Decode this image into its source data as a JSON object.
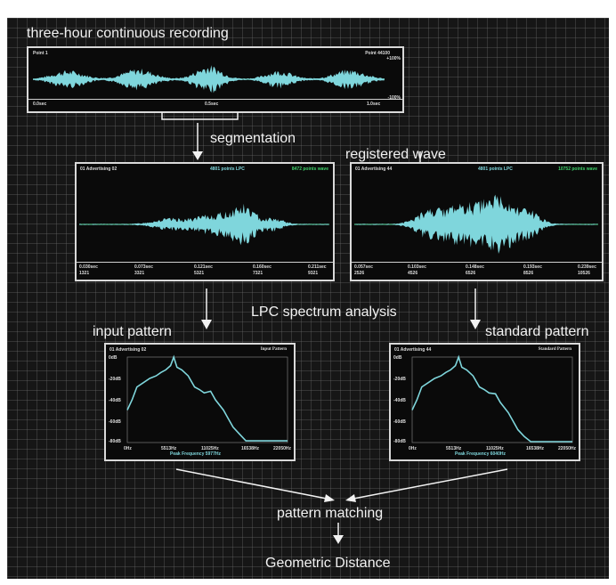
{
  "title": "three-hour continuous recording",
  "colors": {
    "background": "#161616",
    "wave": "#7fd6dc",
    "baseline": "#2fa84a",
    "spectrum": "#7fd6dc",
    "frame": "#d9d9d9"
  },
  "top_panel": {
    "point_left": "Point 1",
    "point_right": "Point 44100",
    "scale_top": "+100%",
    "scale_bottom": "-100%",
    "time_ticks": [
      "0.0sec",
      "0.5sec",
      "1.0sec"
    ]
  },
  "labels": {
    "segmentation": "segmentation",
    "registered_wave": "registered wave",
    "lpc_analysis": "LPC spectrum analysis",
    "input_pattern": "input pattern",
    "standard_pattern": "standard pattern",
    "pattern_matching": "pattern matching",
    "geometric_distance": "Geometric Distance"
  },
  "wave_left": {
    "name": "01 Advertising 02",
    "lpc": "4801 points LPC",
    "wave": "8472 points wave",
    "ticks": [
      "0.030sec",
      "0.073sec",
      "0.121sec",
      "0.160sec",
      "0.211sec"
    ],
    "points": [
      "1321",
      "3321",
      "5321",
      "7321",
      "9321"
    ]
  },
  "wave_right": {
    "name": "01 Advertising 44",
    "lpc": "4801 points LPC",
    "wave": "10752 points wave",
    "ticks": [
      "0.057sec",
      "0.103sec",
      "0.148sec",
      "0.193sec",
      "0.239sec"
    ],
    "points": [
      "2526",
      "4526",
      "6526",
      "8526",
      "10526"
    ]
  },
  "spec_left": {
    "name": "01 Advertising 02",
    "title": "Input Pattern",
    "y_ticks": [
      "0dB",
      "-20dB",
      "-40dB",
      "-60dB",
      "-80dB"
    ],
    "x_ticks": [
      "0Hz",
      "5513Hz",
      "11025Hz",
      "16538Hz",
      "22050Hz"
    ],
    "peak": "Peak Frequency 5977Hz"
  },
  "spec_right": {
    "name": "01 Advertising 44",
    "title": "Standard Pattern",
    "y_ticks": [
      "0dB",
      "-20dB",
      "-40dB",
      "-60dB",
      "-80dB"
    ],
    "x_ticks": [
      "0Hz",
      "5513Hz",
      "11025Hz",
      "16538Hz",
      "22050Hz"
    ],
    "peak": "Peak Frequency 6040Hz"
  }
}
